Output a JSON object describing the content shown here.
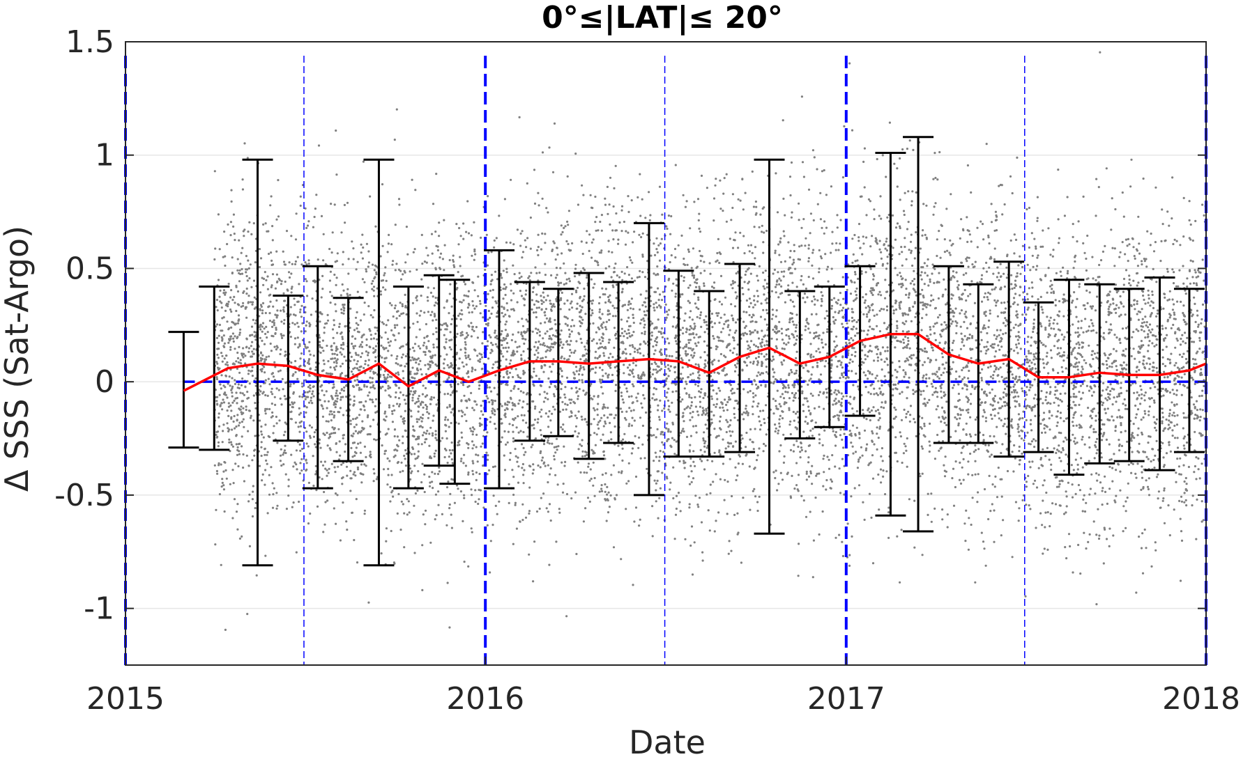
{
  "chart_data": {
    "type": "scatter",
    "title": "0°≤|LAT|≤ 20°",
    "xlabel": "Date",
    "ylabel": "Δ SSS (Sat-Argo)",
    "xlim": [
      "2015-01-01",
      "2018-01-01"
    ],
    "ylim": [
      -1.25,
      1.5
    ],
    "x_ticks": [
      "2015",
      "2016",
      "2017",
      "2018"
    ],
    "y_ticks": [
      -1,
      -0.5,
      0,
      0.5,
      1,
      1.5
    ],
    "y_tick_labels": [
      "-1",
      "-0.5",
      "0",
      "0.5",
      "1",
      "1.5"
    ],
    "grid": true,
    "colors": {
      "scatter": "#808080",
      "mean_line": "#ff0000",
      "error_bars": "#000000",
      "reference_lines": "#0000ff",
      "axes": "#262626",
      "grid": "#e6e6e6"
    },
    "year_boundaries": [
      "2015-01-01",
      "2016-01-01",
      "2017-01-01",
      "2018-01-01"
    ],
    "half_year_lines": [
      "2015-07-01",
      "2016-07-01",
      "2017-07-01"
    ],
    "zero_line": 0,
    "scatter_cloud": {
      "x_start": "2015-04-01",
      "x_end": "2018-01-01",
      "description_hidden": true
    },
    "series": [
      {
        "type": "line",
        "x": [
          "2015-03-01",
          "2015-04-15",
          "2015-05-15",
          "2015-06-15",
          "2015-07-15",
          "2015-08-15",
          "2015-09-15",
          "2015-10-15",
          "2015-11-15",
          "2015-12-15",
          "2016-01-15",
          "2016-02-15",
          "2016-03-15",
          "2016-04-15",
          "2016-05-15",
          "2016-06-15",
          "2016-07-15",
          "2016-08-15",
          "2016-09-15",
          "2016-10-15",
          "2016-11-15",
          "2016-12-15",
          "2017-01-15",
          "2017-02-15",
          "2017-03-15",
          "2017-04-15",
          "2017-05-15",
          "2017-06-15",
          "2017-07-15",
          "2017-08-15",
          "2017-09-15",
          "2017-10-15",
          "2017-11-15",
          "2017-12-15",
          "2018-01-01"
        ],
        "values": [
          -0.04,
          0.06,
          0.08,
          0.07,
          0.03,
          0.01,
          0.08,
          -0.02,
          0.05,
          0.0,
          0.05,
          0.09,
          0.09,
          0.08,
          0.09,
          0.1,
          0.09,
          0.04,
          0.11,
          0.15,
          0.08,
          0.11,
          0.18,
          0.21,
          0.21,
          0.12,
          0.08,
          0.1,
          0.02,
          0.02,
          0.04,
          0.03,
          0.03,
          0.05,
          0.08
        ]
      },
      {
        "type": "errorbar",
        "x": [
          "2015-03-01",
          "2015-04-01",
          "2015-05-15",
          "2015-06-15",
          "2015-07-15",
          "2015-08-15",
          "2015-09-15",
          "2015-10-15",
          "2015-11-15",
          "2015-12-01",
          "2016-01-15",
          "2016-02-15",
          "2016-03-15",
          "2016-04-15",
          "2016-05-15",
          "2016-06-15",
          "2016-07-15",
          "2016-08-15",
          "2016-09-15",
          "2016-10-15",
          "2016-11-15",
          "2016-12-15",
          "2017-01-15",
          "2017-02-15",
          "2017-03-15",
          "2017-04-15",
          "2017-05-15",
          "2017-06-15",
          "2017-07-15",
          "2017-08-15",
          "2017-09-15",
          "2017-10-15",
          "2017-11-15",
          "2017-12-15"
        ],
        "upper": [
          0.22,
          0.42,
          0.98,
          0.38,
          0.51,
          0.37,
          0.98,
          0.42,
          0.47,
          0.45,
          0.58,
          0.44,
          0.41,
          0.48,
          0.44,
          0.7,
          0.49,
          0.4,
          0.52,
          0.98,
          0.4,
          0.42,
          0.51,
          1.01,
          1.08,
          0.51,
          0.43,
          0.53,
          0.35,
          0.45,
          0.43,
          0.41,
          0.46,
          0.41
        ],
        "lower": [
          -0.29,
          -0.3,
          -0.81,
          -0.26,
          -0.47,
          -0.35,
          -0.81,
          -0.47,
          -0.37,
          -0.45,
          -0.47,
          -0.26,
          -0.24,
          -0.34,
          -0.27,
          -0.5,
          -0.33,
          -0.33,
          -0.31,
          -0.67,
          -0.25,
          -0.2,
          -0.15,
          -0.59,
          -0.66,
          -0.27,
          -0.27,
          -0.33,
          -0.31,
          -0.41,
          -0.36,
          -0.35,
          -0.39,
          -0.31
        ]
      }
    ]
  }
}
